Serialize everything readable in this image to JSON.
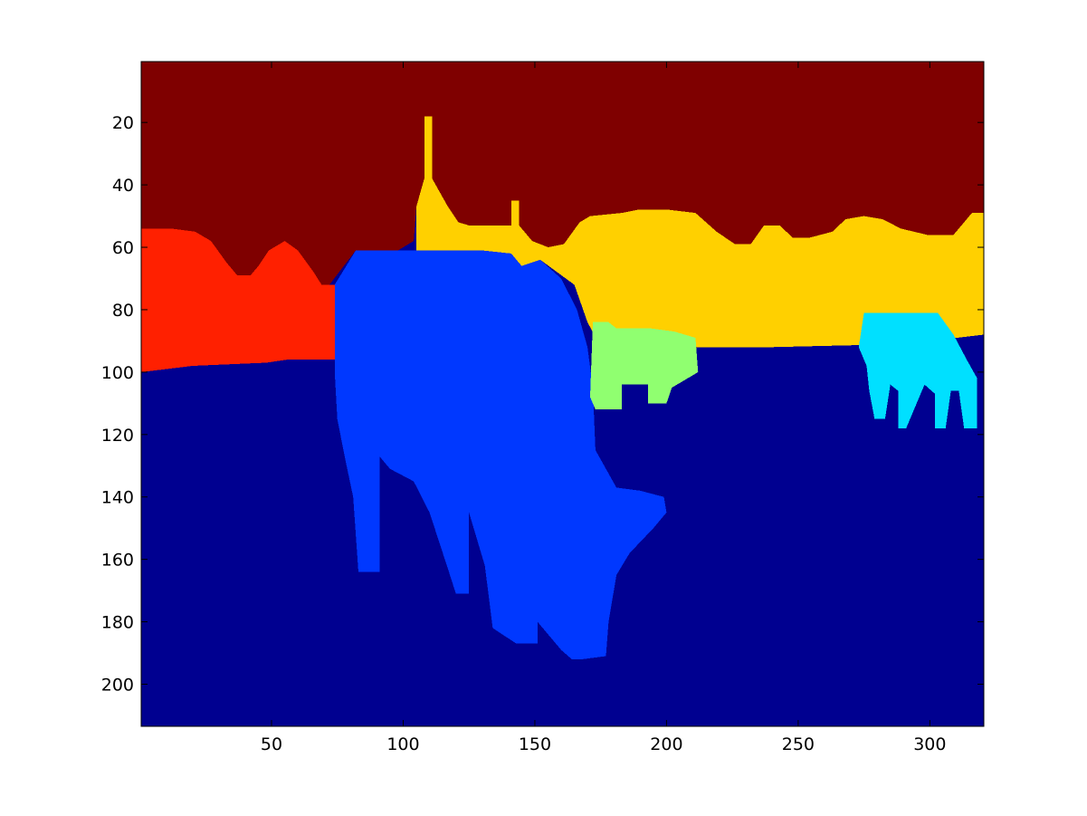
{
  "figure": {
    "background": "#ffffff"
  },
  "chart_data": {
    "type": "heatmap",
    "title": "",
    "xlabel": "",
    "ylabel": "",
    "xlim": [
      0.5,
      320.5
    ],
    "ylim": [
      0.5,
      213.5
    ],
    "y_direction": "reversed",
    "grid": false,
    "legend": "none",
    "colormap": "jet",
    "xticks": [
      50,
      100,
      150,
      200,
      250,
      300
    ],
    "xtick_labels": [
      "50",
      "100",
      "150",
      "200",
      "250",
      "300"
    ],
    "yticks": [
      20,
      40,
      60,
      80,
      100,
      120,
      140,
      160,
      180,
      200
    ],
    "ytick_labels": [
      "20",
      "40",
      "60",
      "80",
      "100",
      "120",
      "140",
      "160",
      "180",
      "200"
    ],
    "regions": [
      {
        "name": "background",
        "color": "#000090",
        "outline": [
          [
            0.5,
            0.5
          ],
          [
            320.5,
            0.5
          ],
          [
            320.5,
            213.5
          ],
          [
            0.5,
            213.5
          ]
        ]
      },
      {
        "name": "sky",
        "color": "#7f0000",
        "outline": [
          [
            0.5,
            0.5
          ],
          [
            320.5,
            0.5
          ],
          [
            320.5,
            49
          ],
          [
            316,
            49
          ],
          [
            312,
            53
          ],
          [
            309,
            56
          ],
          [
            299,
            56
          ],
          [
            289,
            54
          ],
          [
            282,
            51
          ],
          [
            275,
            50
          ],
          [
            268,
            51
          ],
          [
            263,
            55
          ],
          [
            254,
            57
          ],
          [
            248,
            57
          ],
          [
            243,
            53
          ],
          [
            237,
            53
          ],
          [
            232,
            59
          ],
          [
            226,
            59
          ],
          [
            219,
            55
          ],
          [
            211,
            49
          ],
          [
            201,
            48
          ],
          [
            189,
            48
          ],
          [
            183,
            49
          ],
          [
            171,
            50
          ],
          [
            167,
            52
          ],
          [
            161,
            59
          ],
          [
            155,
            60
          ],
          [
            149,
            58
          ],
          [
            143,
            53
          ],
          [
            125,
            53
          ],
          [
            121,
            52
          ],
          [
            117,
            47
          ],
          [
            113,
            41
          ],
          [
            108,
            38
          ],
          [
            105,
            47
          ],
          [
            104,
            58
          ],
          [
            98,
            61
          ],
          [
            82,
            61
          ],
          [
            72,
            72
          ],
          [
            69,
            72
          ],
          [
            66,
            68
          ],
          [
            60,
            61
          ],
          [
            55,
            58
          ],
          [
            49,
            61
          ],
          [
            45,
            66
          ],
          [
            42,
            69
          ],
          [
            37,
            69
          ],
          [
            33,
            65
          ],
          [
            27,
            58
          ],
          [
            21,
            55
          ],
          [
            12,
            54
          ],
          [
            0.5,
            54
          ]
        ]
      },
      {
        "name": "left-field",
        "color": "#ff2000",
        "outline": [
          [
            0.5,
            54
          ],
          [
            12,
            54
          ],
          [
            21,
            55
          ],
          [
            27,
            58
          ],
          [
            33,
            65
          ],
          [
            37,
            69
          ],
          [
            42,
            69
          ],
          [
            45,
            66
          ],
          [
            49,
            61
          ],
          [
            55,
            58
          ],
          [
            60,
            61
          ],
          [
            66,
            68
          ],
          [
            69,
            72
          ],
          [
            74,
            72
          ],
          [
            74,
            96
          ],
          [
            56,
            96
          ],
          [
            48,
            97
          ],
          [
            20,
            98
          ],
          [
            0.5,
            100
          ]
        ]
      },
      {
        "name": "trees",
        "color": "#ffd000",
        "outline": [
          [
            105,
            63
          ],
          [
            105,
            47
          ],
          [
            108,
            38
          ],
          [
            108,
            18
          ],
          [
            111,
            18
          ],
          [
            111,
            38
          ],
          [
            113,
            41
          ],
          [
            117,
            47
          ],
          [
            121,
            52
          ],
          [
            125,
            53
          ],
          [
            141,
            53
          ],
          [
            141,
            45
          ],
          [
            144,
            45
          ],
          [
            144,
            53
          ],
          [
            149,
            58
          ],
          [
            155,
            60
          ],
          [
            161,
            59
          ],
          [
            167,
            52
          ],
          [
            171,
            50
          ],
          [
            183,
            49
          ],
          [
            189,
            48
          ],
          [
            201,
            48
          ],
          [
            211,
            49
          ],
          [
            219,
            55
          ],
          [
            226,
            59
          ],
          [
            232,
            59
          ],
          [
            237,
            53
          ],
          [
            243,
            53
          ],
          [
            248,
            57
          ],
          [
            254,
            57
          ],
          [
            263,
            55
          ],
          [
            268,
            51
          ],
          [
            275,
            50
          ],
          [
            282,
            51
          ],
          [
            289,
            54
          ],
          [
            299,
            56
          ],
          [
            309,
            56
          ],
          [
            312,
            53
          ],
          [
            316,
            49
          ],
          [
            320.5,
            49
          ],
          [
            320.5,
            88
          ],
          [
            290,
            91
          ],
          [
            240,
            92
          ],
          [
            175,
            92
          ],
          [
            170,
            84
          ],
          [
            165,
            72
          ],
          [
            152,
            64
          ],
          [
            145,
            66
          ],
          [
            141,
            62
          ],
          [
            130,
            61
          ],
          [
            108,
            61
          ],
          [
            108,
            63
          ]
        ]
      },
      {
        "name": "cow-large",
        "color": "#0038ff",
        "outline": [
          [
            74,
            72
          ],
          [
            82,
            61
          ],
          [
            98,
            61
          ],
          [
            108,
            61
          ],
          [
            130,
            61
          ],
          [
            141,
            62
          ],
          [
            145,
            66
          ],
          [
            152,
            64
          ],
          [
            160,
            70
          ],
          [
            166,
            80
          ],
          [
            170,
            92
          ],
          [
            172,
            105
          ],
          [
            173,
            125
          ],
          [
            181,
            137
          ],
          [
            190,
            138
          ],
          [
            199,
            140
          ],
          [
            200,
            145
          ],
          [
            195,
            150
          ],
          [
            186,
            158
          ],
          [
            181,
            165
          ],
          [
            178,
            180
          ],
          [
            177,
            191
          ],
          [
            168,
            192
          ],
          [
            164,
            192
          ],
          [
            160,
            189
          ],
          [
            151,
            180
          ],
          [
            151,
            187
          ],
          [
            143,
            187
          ],
          [
            134,
            182
          ],
          [
            131,
            162
          ],
          [
            125,
            145
          ],
          [
            125,
            171
          ],
          [
            120,
            171
          ],
          [
            117,
            163
          ],
          [
            110,
            145
          ],
          [
            104,
            135
          ],
          [
            95,
            131
          ],
          [
            91,
            127
          ],
          [
            91,
            164
          ],
          [
            83,
            164
          ],
          [
            81,
            140
          ],
          [
            78,
            128
          ],
          [
            75,
            115
          ],
          [
            74,
            100
          ]
        ]
      },
      {
        "name": "sheep-middle",
        "color": "#90ff70",
        "outline": [
          [
            172,
            84
          ],
          [
            178,
            84
          ],
          [
            181,
            86
          ],
          [
            194,
            86
          ],
          [
            203,
            87
          ],
          [
            211,
            89
          ],
          [
            212,
            100
          ],
          [
            206,
            103
          ],
          [
            202,
            105
          ],
          [
            200,
            110
          ],
          [
            193,
            110
          ],
          [
            193,
            104
          ],
          [
            183,
            104
          ],
          [
            183,
            112
          ],
          [
            173,
            112
          ],
          [
            171,
            108
          ]
        ]
      },
      {
        "name": "sheep-right",
        "color": "#00e0ff",
        "outline": [
          [
            275,
            81
          ],
          [
            293,
            81
          ],
          [
            303,
            81
          ],
          [
            309,
            88
          ],
          [
            314,
            96
          ],
          [
            318,
            102
          ],
          [
            318,
            118
          ],
          [
            313,
            118
          ],
          [
            311,
            106
          ],
          [
            308,
            106
          ],
          [
            306,
            118
          ],
          [
            302,
            118
          ],
          [
            302,
            107
          ],
          [
            298,
            104
          ],
          [
            296,
            108
          ],
          [
            291,
            118
          ],
          [
            288,
            118
          ],
          [
            288,
            106
          ],
          [
            285,
            104
          ],
          [
            283,
            115
          ],
          [
            279,
            115
          ],
          [
            277,
            106
          ],
          [
            276,
            98
          ],
          [
            273,
            92
          ]
        ]
      }
    ]
  }
}
